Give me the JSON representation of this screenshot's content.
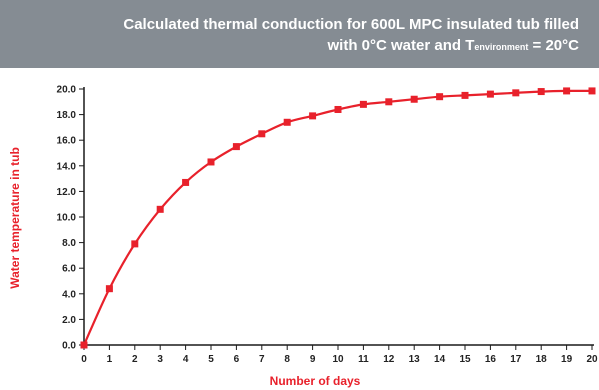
{
  "title": {
    "line1": "Calculated thermal conduction for 600L MPC insulated tub filled",
    "line2_pre": "with 0°C water and T",
    "line2_sub": "environment",
    "line2_post": " = 20°C"
  },
  "colors": {
    "banner": "#858c93",
    "series": "#e8212b",
    "axis_title": "#e8212b"
  },
  "chart_data": {
    "type": "line",
    "xlabel": "Number of days",
    "ylabel": "Water temperature in tub",
    "xlim": [
      0,
      20
    ],
    "ylim": [
      0,
      20
    ],
    "x_ticks": [
      0,
      1,
      2,
      3,
      4,
      5,
      6,
      7,
      8,
      9,
      10,
      11,
      12,
      13,
      14,
      15,
      16,
      17,
      18,
      19,
      20
    ],
    "y_ticks": [
      "0.0",
      "2.0",
      "4.0",
      "6.0",
      "8.0",
      "10.0",
      "12.0",
      "14.0",
      "16.0",
      "18.0",
      "20.0"
    ],
    "grid": false,
    "series": [
      {
        "x": [
          0,
          1,
          2,
          3,
          4,
          5,
          6,
          7,
          8,
          9,
          10,
          11,
          12,
          13,
          14,
          15,
          16,
          17,
          18,
          19,
          20
        ],
        "y": [
          0.0,
          4.4,
          7.9,
          10.6,
          12.7,
          14.3,
          15.5,
          16.5,
          17.4,
          17.9,
          18.4,
          18.8,
          19.0,
          19.2,
          19.4,
          19.5,
          19.6,
          19.7,
          19.8,
          19.85,
          19.85
        ]
      }
    ]
  }
}
